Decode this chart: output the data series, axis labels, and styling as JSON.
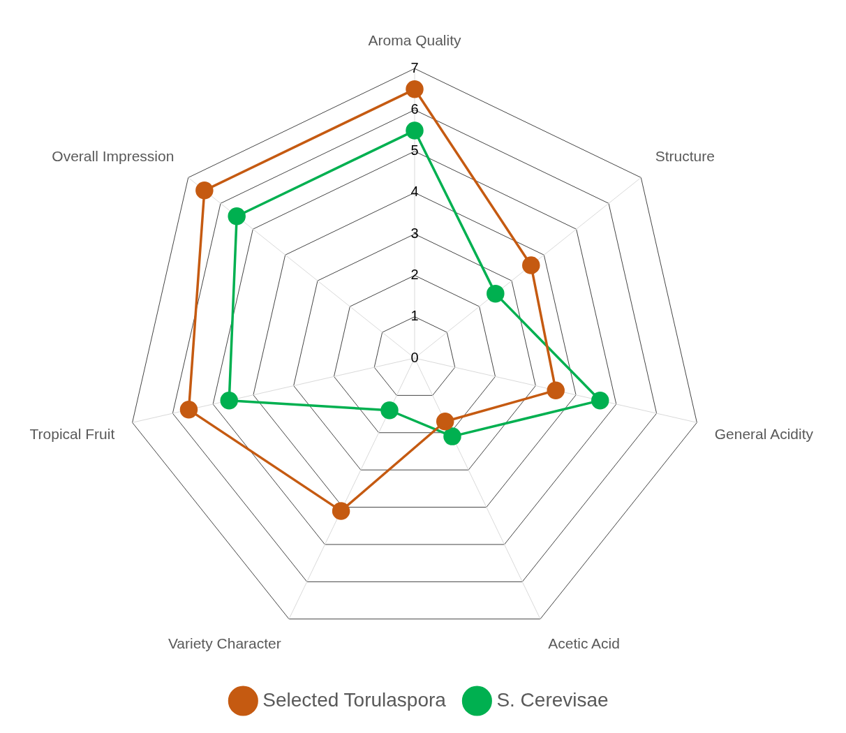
{
  "chart_data": {
    "type": "radar",
    "categories": [
      "Aroma Quality",
      "Structure",
      "General Acidity",
      "Acetic Acid",
      "Variety Character",
      "Tropical Fruit",
      "Overall Impression"
    ],
    "series": [
      {
        "name": "Selected Torulaspora",
        "color": "#c55a11",
        "values": [
          6.5,
          3.6,
          3.5,
          1.7,
          4.1,
          5.6,
          6.5
        ]
      },
      {
        "name": "S. Cerevisae",
        "color": "#00b050",
        "values": [
          5.5,
          2.5,
          4.6,
          2.1,
          1.4,
          4.6,
          5.5
        ]
      }
    ],
    "ylim": [
      0,
      7
    ],
    "yticks": [
      0,
      1,
      2,
      3,
      4,
      5,
      6,
      7
    ],
    "grid": true,
    "legend": "bottom",
    "marker": "circle"
  }
}
